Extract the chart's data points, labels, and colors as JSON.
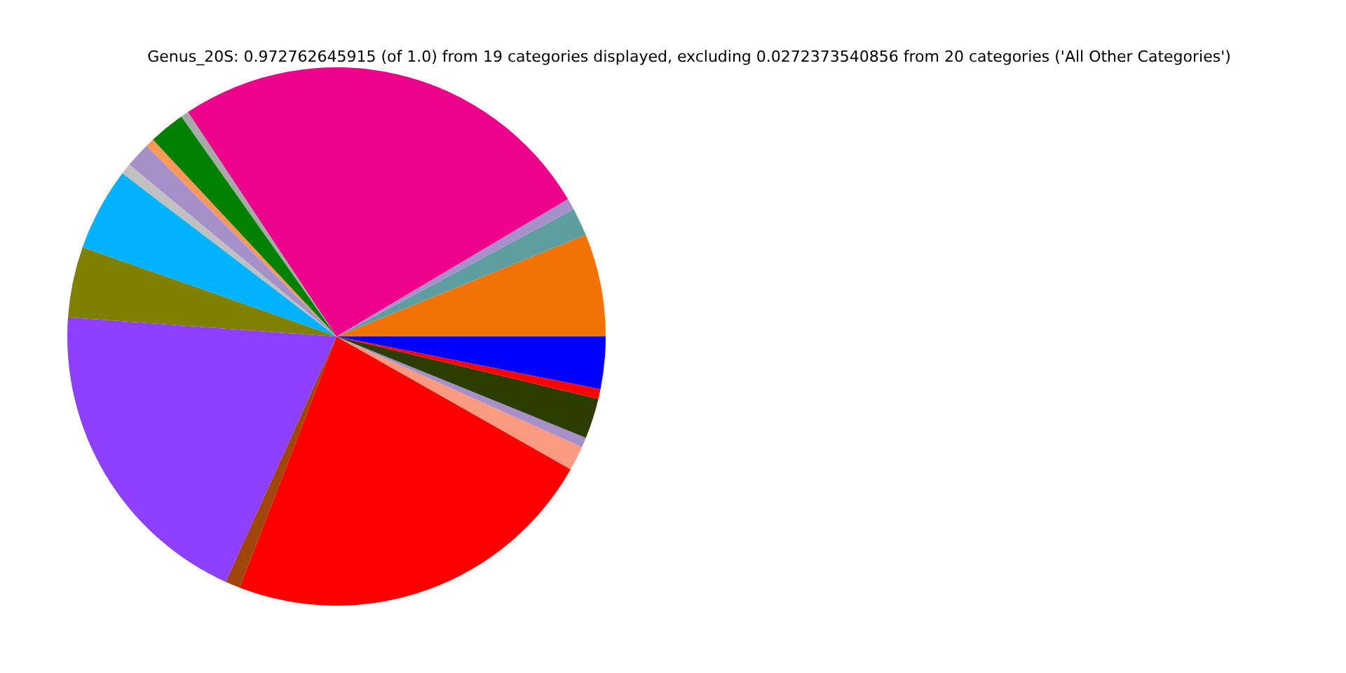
{
  "chart_data": {
    "type": "pie",
    "title": "Genus_20S: 0.972762645915 (of 1.0) from 19 categories displayed, excluding 0.0272373540856 from 20 categories ('All Other Categories')",
    "categories": [
      null,
      null,
      null,
      null,
      null,
      null,
      null,
      null,
      null,
      null,
      null,
      null,
      null,
      null,
      null,
      null,
      null,
      null,
      null
    ],
    "values": [
      3.14,
      6.17,
      1.67,
      0.69,
      25.78,
      0.47,
      2.17,
      0.53,
      1.5,
      0.66,
      4.98,
      4.25,
      19.38,
      0.89,
      22.65,
      1.47,
      0.6,
      2.42,
      0.58
    ],
    "colors": [
      "#0000ff",
      "#f27304",
      "#5f9ea0",
      "#a590c9",
      "#ec008c",
      "#a9a9a9",
      "#008000",
      "#ff9955",
      "#a590c9",
      "#c0c0c0",
      "#00b2ff",
      "#808000",
      "#8f3fff",
      "#a0460a",
      "#ff0000",
      "#fa9a80",
      "#a590c9",
      "#2b3d00",
      "#ff0000"
    ],
    "legend": false
  }
}
